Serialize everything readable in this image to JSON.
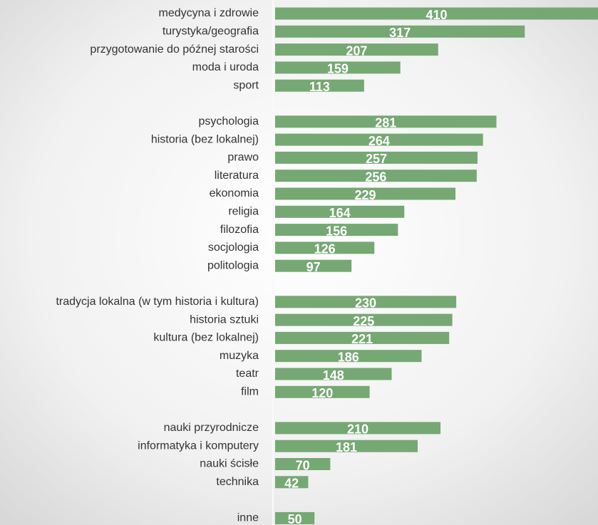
{
  "chart_data": {
    "type": "hbar",
    "categories": [
      "medycyna i zdrowie",
      "turystyka/geografia",
      "przygotowanie do późnej starości",
      "moda i uroda",
      "sport",
      null,
      "psychologia",
      "historia (bez lokalnej)",
      "prawo",
      "literatura",
      "ekonomia",
      "religia",
      "filozofia",
      "socjologia",
      "politologia",
      null,
      "tradycja lokalna (w tym historia i kultura)",
      "historia sztuki",
      "kultura (bez lokalnej)",
      "muzyka",
      "teatr",
      "film",
      null,
      "nauki przyrodnicze",
      "informatyka i komputery",
      "nauki ścisłe ",
      "technika",
      null,
      "inne"
    ],
    "values": [
      410,
      317,
      207,
      159,
      113,
      null,
      281,
      264,
      257,
      256,
      229,
      164,
      156,
      126,
      97,
      null,
      230,
      225,
      221,
      186,
      148,
      120,
      null,
      210,
      181,
      70,
      42,
      null,
      50
    ],
    "color": "#76a873",
    "xlim": [
      0,
      410
    ]
  }
}
